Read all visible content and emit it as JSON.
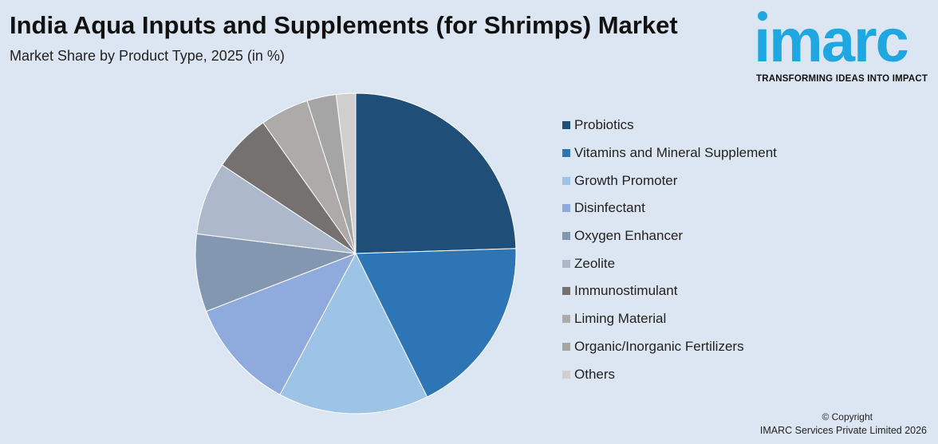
{
  "header": {
    "title": "India Aqua Inputs and Supplements (for Shrimps) Market",
    "subtitle": "Market Share by Product Type, 2025 (in %)"
  },
  "logo": {
    "word": "ımarc",
    "tagline": "TRANSFORMING IDEAS INTO IMPACT",
    "color": "#1ea7e1"
  },
  "footer": {
    "copyright": "© Copyright",
    "company": "IMARC Services Private Limited 2026"
  },
  "chart_data": {
    "type": "pie",
    "title": "India Aqua Inputs and Supplements (for Shrimps) Market",
    "subtitle": "Market Share by Product Type, 2025 (in %)",
    "legend_position": "right",
    "start_angle": "12 o'clock",
    "direction": "clockwise",
    "slices": [
      {
        "label": "Probiotics",
        "value": 25.0,
        "color": "#1f4e79"
      },
      {
        "label": "Vitamins and Mineral Supplement",
        "value": 18.5,
        "color": "#2e75b6"
      },
      {
        "label": "Growth Promoter",
        "value": 15.5,
        "color": "#9dc3e6"
      },
      {
        "label": "Disinfectant",
        "value": 11.5,
        "color": "#8faadc"
      },
      {
        "label": "Oxygen Enhancer",
        "value": 8.0,
        "color": "#8497b0"
      },
      {
        "label": "Zeolite",
        "value": 7.5,
        "color": "#adb9ca"
      },
      {
        "label": "Immunostimulant",
        "value": 6.0,
        "color": "#767171"
      },
      {
        "label": "Liming Material",
        "value": 5.0,
        "color": "#aeaaaa"
      },
      {
        "label": "Organic/Inorganic Fertilizers",
        "value": 3.0,
        "color": "#a5a5a5"
      },
      {
        "label": "Others",
        "value": 2.0,
        "color": "#d0cece"
      }
    ]
  }
}
